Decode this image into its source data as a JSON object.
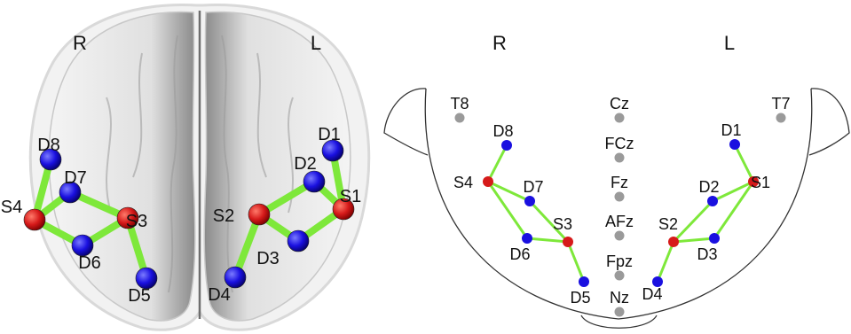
{
  "colors": {
    "source": "#d61a1a",
    "detector": "#1a10e0",
    "midline": "#9a9a9a",
    "channel": "#7ee83a",
    "brain_surface": "#e6e6e6",
    "head_outline": "#333333"
  },
  "left_panel": {
    "hemisphere_right": "R",
    "hemisphere_left": "L",
    "optodes": [
      {
        "id": "D8",
        "kind": "detector"
      },
      {
        "id": "D7",
        "kind": "detector"
      },
      {
        "id": "S4",
        "kind": "source"
      },
      {
        "id": "S3",
        "kind": "source"
      },
      {
        "id": "D6",
        "kind": "detector"
      },
      {
        "id": "D5",
        "kind": "detector"
      },
      {
        "id": "D1",
        "kind": "detector"
      },
      {
        "id": "D2",
        "kind": "detector"
      },
      {
        "id": "S1",
        "kind": "source"
      },
      {
        "id": "S2",
        "kind": "source"
      },
      {
        "id": "D3",
        "kind": "detector"
      },
      {
        "id": "D4",
        "kind": "detector"
      }
    ],
    "channels": [
      [
        "S4",
        "D8"
      ],
      [
        "S4",
        "D7"
      ],
      [
        "S4",
        "D6"
      ],
      [
        "S3",
        "D7"
      ],
      [
        "S3",
        "D6"
      ],
      [
        "S3",
        "D5"
      ],
      [
        "S1",
        "D1"
      ],
      [
        "S1",
        "D2"
      ],
      [
        "S1",
        "D3"
      ],
      [
        "S2",
        "D2"
      ],
      [
        "S2",
        "D3"
      ],
      [
        "S2",
        "D4"
      ]
    ]
  },
  "right_panel": {
    "hemisphere_right": "R",
    "hemisphere_left": "L",
    "midline": [
      "Cz",
      "FCz",
      "Fz",
      "AFz",
      "Fpz",
      "Nz"
    ],
    "temporal": [
      "T8",
      "T7"
    ],
    "optodes": [
      {
        "id": "D8",
        "kind": "detector"
      },
      {
        "id": "S4",
        "kind": "source"
      },
      {
        "id": "D7",
        "kind": "detector"
      },
      {
        "id": "S3",
        "kind": "source"
      },
      {
        "id": "D6",
        "kind": "detector"
      },
      {
        "id": "D5",
        "kind": "detector"
      },
      {
        "id": "D1",
        "kind": "detector"
      },
      {
        "id": "S1",
        "kind": "source"
      },
      {
        "id": "D2",
        "kind": "detector"
      },
      {
        "id": "S2",
        "kind": "source"
      },
      {
        "id": "D3",
        "kind": "detector"
      },
      {
        "id": "D4",
        "kind": "detector"
      }
    ],
    "channels": [
      [
        "S4",
        "D8"
      ],
      [
        "S4",
        "D7"
      ],
      [
        "S4",
        "D6"
      ],
      [
        "S3",
        "D7"
      ],
      [
        "S3",
        "D6"
      ],
      [
        "S3",
        "D5"
      ],
      [
        "S1",
        "D1"
      ],
      [
        "S1",
        "D2"
      ],
      [
        "S1",
        "D3"
      ],
      [
        "S2",
        "D2"
      ],
      [
        "S2",
        "D3"
      ],
      [
        "S2",
        "D4"
      ]
    ]
  }
}
